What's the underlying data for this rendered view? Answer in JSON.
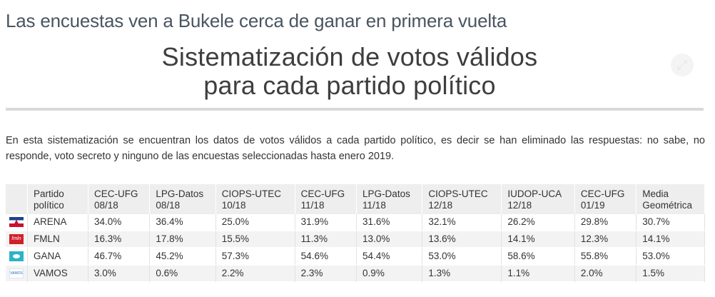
{
  "kicker": "Las encuestas ven a Bukele cerca de ganar en primera vuelta",
  "title": {
    "line1": "Sistematización de votos válidos",
    "line2": "para cada partido político"
  },
  "description": "En esta sistematización se encuentran los datos de votos válidos a cada partido político, es decir se han eliminado las respuestas: no sabe, no responde, voto secreto y ninguno de las encuestas seleccionadas hasta enero 2019.",
  "table": {
    "headers": [
      {
        "line1": "Partido",
        "line2": "político"
      },
      {
        "line1": "CEC-UFG",
        "line2": "08/18"
      },
      {
        "line1": "LPG-Datos",
        "line2": "08/18"
      },
      {
        "line1": "CIOPS-UTEC",
        "line2": "10/18"
      },
      {
        "line1": "CEC-UFG",
        "line2": "11/18"
      },
      {
        "line1": "LPG-Datos",
        "line2": "11/18"
      },
      {
        "line1": "CIOPS-UTEC",
        "line2": "12/18"
      },
      {
        "line1": "IUDOP-UCA",
        "line2": "12/18"
      },
      {
        "line1": "CEC-UFG",
        "line2": "01/19"
      },
      {
        "line1": "Media",
        "line2": "Geométrica"
      }
    ],
    "rows": [
      {
        "party": "ARENA",
        "logo": "arena-flag-icon",
        "logo_text": "",
        "values": [
          "34.0%",
          "36.4%",
          "25.0%",
          "31.9%",
          "31.6%",
          "32.1%",
          "26.2%",
          "29.8%",
          "30.7%"
        ]
      },
      {
        "party": "FMLN",
        "logo": "fmln-flag-icon",
        "logo_text": "fmln",
        "values": [
          "16.3%",
          "17.8%",
          "15.5%",
          "11.3%",
          "13.0%",
          "13.6%",
          "14.1%",
          "12.3%",
          "14.1%"
        ]
      },
      {
        "party": "GANA",
        "logo": "gana-flag-icon",
        "logo_text": "",
        "values": [
          "46.7%",
          "45.2%",
          "57.3%",
          "54.6%",
          "54.4%",
          "53.0%",
          "58.6%",
          "55.8%",
          "53.0%"
        ]
      },
      {
        "party": "VAMOS",
        "logo": "vamos-flag-icon",
        "logo_text": "VAMOS",
        "values": [
          "3.0%",
          "0.6%",
          "2.2%",
          "2.3%",
          "0.9%",
          "1.3%",
          "1.1%",
          "2.0%",
          "1.5%"
        ]
      }
    ]
  },
  "corner_button_icon": "expand-icon",
  "corner_button_glyph": "⤢"
}
